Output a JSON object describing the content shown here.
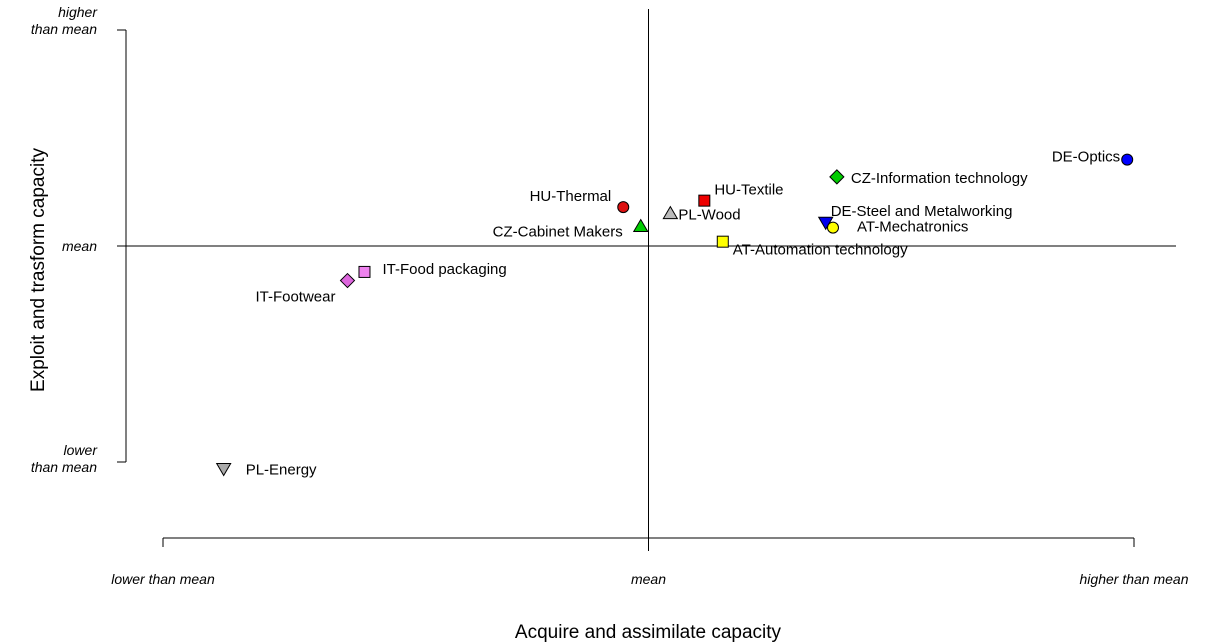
{
  "chart_data": {
    "type": "scatter",
    "title": "",
    "xlabel": "Acquire and assimilate capacity",
    "ylabel": "Exploit and trasform capacity",
    "xlim": [
      -1,
      1
    ],
    "ylim": [
      -1,
      1
    ],
    "grid": false,
    "reference_lines": {
      "x": 0,
      "y": 0
    },
    "x_ticks": [
      {
        "value": -1,
        "label": "lower than mean"
      },
      {
        "value": 0,
        "label": "mean"
      },
      {
        "value": 1,
        "label": "higher than mean"
      }
    ],
    "y_ticks": [
      {
        "value": 1,
        "label_lines": [
          "higher",
          "than mean"
        ]
      },
      {
        "value": 0,
        "label_lines": [
          "mean"
        ]
      },
      {
        "value": -1,
        "label_lines": [
          "lower",
          "than mean"
        ]
      }
    ],
    "points": [
      {
        "label": "DE-Optics",
        "x": 0.986,
        "y": 0.4,
        "shape": "circle",
        "color": "#0000ff",
        "label_side": "left"
      },
      {
        "label": "CZ-Information technology",
        "x": 0.388,
        "y": 0.32,
        "shape": "diamond",
        "color": "#00cc00",
        "label_side": "right"
      },
      {
        "label": "HU-Textile",
        "x": 0.115,
        "y": 0.21,
        "shape": "square",
        "color": "#ee0000",
        "label_side": "right"
      },
      {
        "label": "HU-Thermal",
        "x": -0.052,
        "y": 0.18,
        "shape": "circle",
        "color": "#dd1111",
        "label_side": "left"
      },
      {
        "label": "PL-Wood",
        "x": 0.045,
        "y": 0.15,
        "shape": "triangle-up",
        "color": "#bbbbbb",
        "label_side": "right"
      },
      {
        "label": "CZ-Cabinet Makers",
        "x": -0.016,
        "y": 0.09,
        "shape": "triangle-up",
        "color": "#00cc00",
        "label_side": "left"
      },
      {
        "label": "DE-Steel and Metalworking",
        "x": 0.365,
        "y": 0.11,
        "shape": "triangle-down",
        "color": "#0000ee",
        "label_side": "right"
      },
      {
        "label": "AT-Mechatronics",
        "x": 0.38,
        "y": 0.085,
        "shape": "circle",
        "color": "#ffff00",
        "label_side": "right"
      },
      {
        "label": "AT-Automation technology",
        "x": 0.153,
        "y": 0.02,
        "shape": "square",
        "color": "#ffff00",
        "label_side": "right"
      },
      {
        "label": "IT-Food packaging",
        "x": -0.585,
        "y": -0.12,
        "shape": "square",
        "color": "#ee82ee",
        "label_side": "right"
      },
      {
        "label": "IT-Footwear",
        "x": -0.62,
        "y": -0.16,
        "shape": "diamond",
        "color": "#dd66dd",
        "label_side": "left"
      },
      {
        "label": "PL-Energy",
        "x": -0.875,
        "y": -1.03,
        "shape": "triangle-down",
        "color": "#aaaaaa",
        "label_side": "right"
      }
    ]
  }
}
